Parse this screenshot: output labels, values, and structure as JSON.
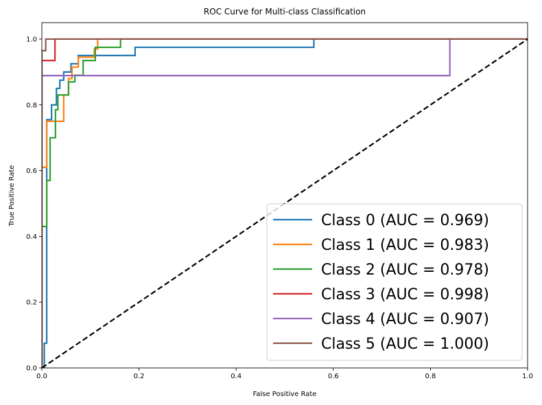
{
  "chart_data": {
    "type": "line",
    "title": "ROC Curve for Multi-class Classification",
    "xlabel": "False Positive Rate",
    "ylabel": "True Positive Rate",
    "xlim": [
      0.0,
      1.0
    ],
    "ylim": [
      0.0,
      1.05
    ],
    "x_ticks": [
      "0.0",
      "0.2",
      "0.4",
      "0.6",
      "0.8",
      "1.0"
    ],
    "y_ticks": [
      "0.0",
      "0.2",
      "0.4",
      "0.6",
      "0.8",
      "1.0"
    ],
    "grid": false,
    "legend_position": "lower-right",
    "reference_line": {
      "style": "dashed",
      "color": "#000000",
      "x": [
        0,
        1
      ],
      "y": [
        0,
        1
      ]
    },
    "series": [
      {
        "name": "Class 0 (AUC = 0.969)",
        "color": "#1f77b4",
        "x": [
          0,
          0.005,
          0.005,
          0.01,
          0.01,
          0.02,
          0.02,
          0.03,
          0.03,
          0.037,
          0.037,
          0.045,
          0.045,
          0.06,
          0.06,
          0.075,
          0.075,
          0.11,
          0.11,
          0.192,
          0.192,
          0.56,
          0.56,
          1.0
        ],
        "y": [
          0,
          0,
          0.075,
          0.075,
          0.755,
          0.755,
          0.8,
          0.8,
          0.85,
          0.85,
          0.875,
          0.875,
          0.9,
          0.9,
          0.925,
          0.925,
          0.95,
          0.95,
          0.95,
          0.95,
          0.975,
          0.975,
          1.0,
          1.0
        ]
      },
      {
        "name": "Class 1 (AUC = 0.983)",
        "color": "#ff7f0e",
        "x": [
          0,
          0,
          0.01,
          0.01,
          0.045,
          0.045,
          0.055,
          0.055,
          0.062,
          0.062,
          0.075,
          0.075,
          0.108,
          0.108,
          0.115,
          0.115,
          1.0
        ],
        "y": [
          0,
          0.61,
          0.61,
          0.75,
          0.75,
          0.83,
          0.83,
          0.88,
          0.88,
          0.915,
          0.915,
          0.945,
          0.945,
          0.97,
          0.97,
          1.0,
          1.0
        ]
      },
      {
        "name": "Class 2 (AUC = 0.978)",
        "color": "#2ca02c",
        "x": [
          0,
          0,
          0.01,
          0.01,
          0.017,
          0.017,
          0.028,
          0.028,
          0.033,
          0.033,
          0.055,
          0.055,
          0.068,
          0.068,
          0.085,
          0.085,
          0.11,
          0.11,
          0.162,
          0.162,
          1.0
        ],
        "y": [
          0,
          0.43,
          0.43,
          0.57,
          0.57,
          0.7,
          0.7,
          0.785,
          0.785,
          0.83,
          0.83,
          0.87,
          0.87,
          0.89,
          0.89,
          0.935,
          0.935,
          0.975,
          0.975,
          1.0,
          1.0
        ]
      },
      {
        "name": "Class 3 (AUC = 0.998)",
        "color": "#d62728",
        "x": [
          0,
          0,
          0.027,
          0.027,
          1.0
        ],
        "y": [
          0,
          0.935,
          0.935,
          1.0,
          1.0
        ]
      },
      {
        "name": "Class 4 (AUC = 0.907)",
        "color": "#9467bd",
        "x": [
          0,
          0,
          0.84,
          0.84,
          1.0
        ],
        "y": [
          0,
          0.889,
          0.889,
          1.0,
          1.0
        ]
      },
      {
        "name": "Class 5 (AUC = 1.000)",
        "color": "#8c564b",
        "x": [
          0,
          0,
          0.008,
          0.008,
          1.0
        ],
        "y": [
          0,
          0.965,
          0.965,
          1.0,
          1.0
        ]
      }
    ]
  }
}
